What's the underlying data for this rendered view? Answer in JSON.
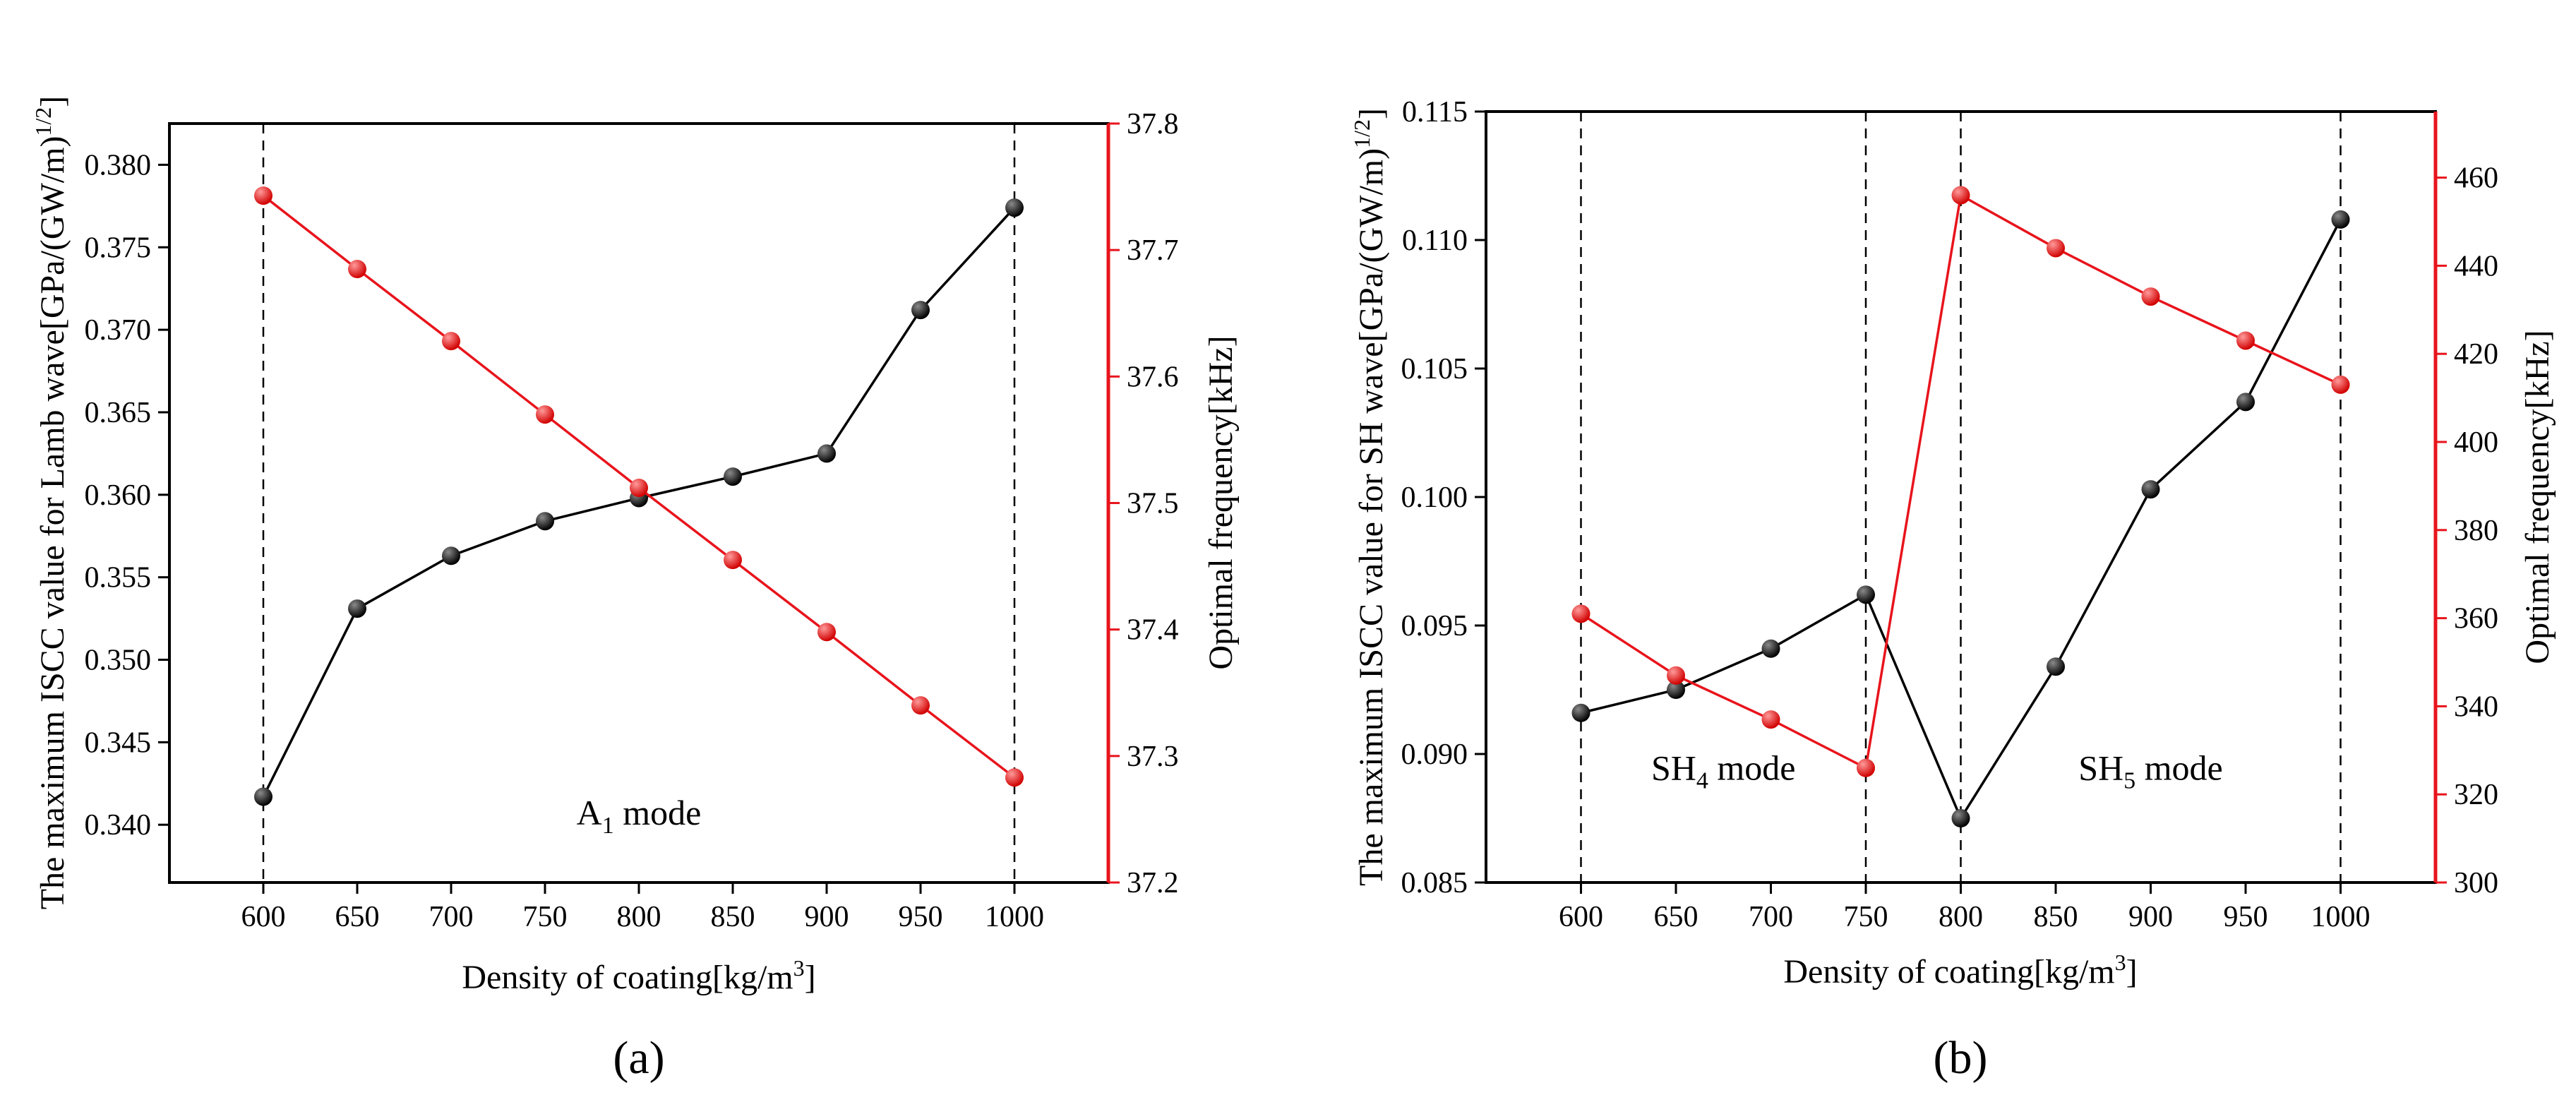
{
  "chart_data": [
    {
      "type": "line",
      "caption": "(a)",
      "xlabel": "Density of coating[kg/m³]",
      "ylabel": "The maximum ISCC value for Lamb wave[GPa/(GW/m)^1/2]",
      "ylabel_right": "Optimal frequency[kHz]",
      "x": [
        600,
        650,
        700,
        750,
        800,
        850,
        900,
        950,
        1000
      ],
      "xticks": [
        "600",
        "650",
        "700",
        "750",
        "800",
        "850",
        "900",
        "950",
        "1000"
      ],
      "xlim": [
        550,
        1050
      ],
      "ylim_left": [
        0.3365,
        0.3825
      ],
      "yticks_left": [
        "0.340",
        "0.345",
        "0.350",
        "0.355",
        "0.360",
        "0.365",
        "0.370",
        "0.375",
        "0.380"
      ],
      "ylim_right": [
        37.2,
        37.8
      ],
      "yticks_right": [
        "37.2",
        "37.3",
        "37.4",
        "37.5",
        "37.6",
        "37.7",
        "37.8"
      ],
      "series": [
        {
          "name": "Maximum ISCC",
          "axis": "left",
          "color": "#000000",
          "values": [
            0.3417,
            0.3531,
            0.3563,
            0.3584,
            0.3598,
            0.3611,
            0.3625,
            0.3712,
            0.3774
          ]
        },
        {
          "name": "Optimal frequency",
          "axis": "right",
          "color": "#e8141c",
          "values": [
            37.743,
            37.685,
            37.628,
            37.57,
            37.512,
            37.455,
            37.398,
            37.34,
            37.283
          ]
        }
      ],
      "vlines": [
        600,
        1000
      ],
      "annotations": [
        {
          "text_main": "A",
          "sub": "1",
          "text_rest": " mode",
          "x": 800,
          "y": 0.34
        }
      ]
    },
    {
      "type": "line",
      "caption": "(b)",
      "xlabel": "Density of coating[kg/m³]",
      "ylabel": "The maximum ISCC value for SH wave[GPa/(GW/m)^1/2]",
      "ylabel_right": "Optimal frequency[kHz]",
      "x": [
        600,
        650,
        700,
        750,
        800,
        850,
        900,
        950,
        1000
      ],
      "xticks": [
        "600",
        "650",
        "700",
        "750",
        "800",
        "850",
        "900",
        "950",
        "1000"
      ],
      "xlim": [
        550,
        1050
      ],
      "ylim_left": [
        0.085,
        0.115
      ],
      "yticks_left": [
        "0.085",
        "0.090",
        "0.095",
        "0.100",
        "0.105",
        "0.110",
        "0.115"
      ],
      "ylim_right": [
        300,
        475
      ],
      "yticks_right": [
        "300",
        "320",
        "340",
        "360",
        "380",
        "400",
        "420",
        "440",
        "460"
      ],
      "series": [
        {
          "name": "Maximum ISCC",
          "axis": "left",
          "color": "#000000",
          "values": [
            0.0916,
            0.0925,
            0.0941,
            0.0962,
            0.0875,
            0.0934,
            0.1003,
            0.1037,
            0.1108
          ]
        },
        {
          "name": "Optimal frequency",
          "axis": "right",
          "color": "#e8141c",
          "values": [
            361,
            347,
            337,
            326,
            456,
            444,
            433,
            423,
            413
          ]
        }
      ],
      "vlines": [
        600,
        750,
        800,
        1000
      ],
      "annotations": [
        {
          "text_main": "SH",
          "sub": "4",
          "text_rest": " mode",
          "x": 675,
          "y": 0.089
        },
        {
          "text_main": "SH",
          "sub": "5",
          "text_rest": " mode",
          "x": 900,
          "y": 0.089
        }
      ]
    }
  ]
}
